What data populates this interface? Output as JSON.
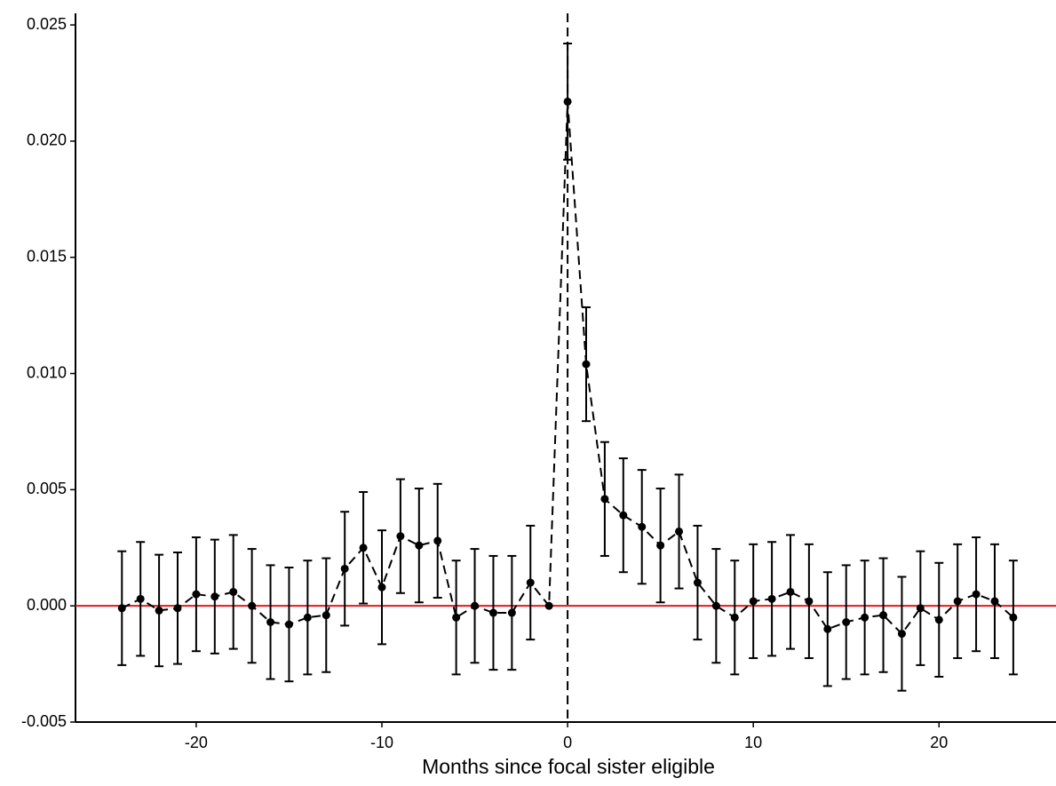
{
  "chart_data": {
    "type": "errorbar-line",
    "x_label": "Months since focal sister eligible",
    "x": [
      -24,
      -23,
      -22,
      -21,
      -20,
      -19,
      -18,
      -17,
      -16,
      -15,
      -14,
      -13,
      -12,
      -11,
      -10,
      -9,
      -8,
      -7,
      -6,
      -5,
      -4,
      -3,
      -2,
      -1,
      0,
      1,
      2,
      3,
      4,
      5,
      6,
      7,
      8,
      9,
      10,
      11,
      12,
      13,
      14,
      15,
      16,
      17,
      18,
      19,
      20,
      21,
      22,
      23,
      24
    ],
    "values": [
      -0.0001,
      0.0003,
      -0.0002,
      -0.0001,
      0.0005,
      0.0004,
      0.0006,
      0.0,
      -0.0007,
      -0.0008,
      -0.0005,
      -0.0004,
      0.0016,
      0.0025,
      0.0008,
      0.003,
      0.0026,
      0.0028,
      -0.0005,
      0.0,
      -0.0003,
      -0.0003,
      0.001,
      0.0,
      0.0217,
      0.0104,
      0.0046,
      0.0039,
      0.0034,
      0.0026,
      0.0032,
      0.001,
      0.0,
      -0.0005,
      0.0002,
      0.0003,
      0.0006,
      0.0002,
      -0.001,
      -0.0007,
      -0.0005,
      -0.0004,
      -0.0012,
      -0.0001,
      -0.0006,
      0.0002,
      0.0005,
      0.0002,
      -0.0005
    ],
    "errors": [
      0.00245,
      0.00245,
      0.0024,
      0.0024,
      0.00245,
      0.00245,
      0.00245,
      0.00245,
      0.00245,
      0.00245,
      0.00245,
      0.00245,
      0.00245,
      0.0024,
      0.00245,
      0.00245,
      0.00245,
      0.00245,
      0.00245,
      0.00245,
      0.00245,
      0.00245,
      0.00245,
      null,
      0.0025,
      0.00245,
      0.00245,
      0.00245,
      0.00245,
      0.00245,
      0.00245,
      0.00245,
      0.00245,
      0.00245,
      0.00245,
      0.00245,
      0.00245,
      0.00245,
      0.00245,
      0.00245,
      0.00245,
      0.00245,
      0.00245,
      0.00245,
      0.00245,
      0.00245,
      0.00245,
      0.00245,
      0.00245
    ],
    "color": "#000000",
    "hline": 0,
    "hline_color": "#e31a1c",
    "vline": 0,
    "xlim": [
      -26.5,
      26.3
    ],
    "xticks": [
      -20,
      -10,
      0,
      10,
      20
    ],
    "ylim": [
      -0.005,
      0.0255
    ],
    "yticks": [
      -0.005,
      {
        "value": 0,
        "label": "0.000"
      },
      0.005,
      {
        "value": 0.01,
        "label": "0.010"
      },
      0.015,
      {
        "value": 0.02,
        "label": "0.020"
      },
      0.025
    ]
  }
}
